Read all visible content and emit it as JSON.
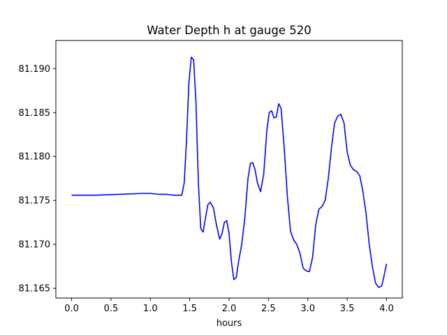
{
  "chart_data": {
    "type": "line",
    "title": "Water Depth h at gauge 520",
    "xlabel": "hours",
    "ylabel": "",
    "xlim": [
      -0.2,
      4.2
    ],
    "ylim": [
      81.1639,
      81.1932
    ],
    "xticks": [
      0.0,
      0.5,
      1.0,
      1.5,
      2.0,
      2.5,
      3.0,
      3.5,
      4.0
    ],
    "xtick_labels": [
      "0.0",
      "0.5",
      "1.0",
      "1.5",
      "2.0",
      "2.5",
      "3.0",
      "3.5",
      "4.0"
    ],
    "yticks": [
      81.165,
      81.17,
      81.175,
      81.18,
      81.185,
      81.19
    ],
    "ytick_labels": [
      "81.165",
      "81.170",
      "81.175",
      "81.180",
      "81.185",
      "81.190"
    ],
    "grid": false,
    "series": [
      {
        "color": "#0000ff",
        "x": [
          0.0,
          0.3,
          0.6,
          0.9,
          1.0,
          1.1,
          1.2,
          1.3,
          1.4,
          1.43,
          1.46,
          1.49,
          1.52,
          1.55,
          1.58,
          1.61,
          1.64,
          1.67,
          1.7,
          1.73,
          1.76,
          1.8,
          1.84,
          1.88,
          1.91,
          1.94,
          1.97,
          2.0,
          2.03,
          2.06,
          2.09,
          2.12,
          2.16,
          2.2,
          2.24,
          2.27,
          2.3,
          2.33,
          2.36,
          2.4,
          2.44,
          2.48,
          2.51,
          2.54,
          2.57,
          2.6,
          2.63,
          2.66,
          2.7,
          2.74,
          2.78,
          2.82,
          2.86,
          2.9,
          2.94,
          2.98,
          3.02,
          3.06,
          3.1,
          3.14,
          3.18,
          3.22,
          3.26,
          3.3,
          3.34,
          3.38,
          3.42,
          3.46,
          3.5,
          3.54,
          3.58,
          3.62,
          3.66,
          3.7,
          3.74,
          3.78,
          3.82,
          3.86,
          3.9,
          3.94,
          3.97,
          4.0
        ],
        "y": [
          81.1756,
          81.1756,
          81.1757,
          81.1758,
          81.1758,
          81.1757,
          81.1757,
          81.1756,
          81.1756,
          81.177,
          81.182,
          81.1885,
          81.1913,
          81.191,
          81.186,
          81.177,
          81.1718,
          81.1714,
          81.173,
          81.1745,
          81.1748,
          81.1742,
          81.1722,
          81.1706,
          81.1712,
          81.1725,
          81.1727,
          81.1712,
          81.168,
          81.166,
          81.1662,
          81.168,
          81.17,
          81.173,
          81.1775,
          81.1792,
          81.1793,
          81.1785,
          81.177,
          81.176,
          81.178,
          81.183,
          81.185,
          81.1852,
          81.1844,
          81.1845,
          81.186,
          81.1855,
          81.181,
          81.1755,
          81.1715,
          81.1705,
          81.17,
          81.169,
          81.1673,
          81.167,
          81.1669,
          81.1685,
          81.1722,
          81.174,
          81.1743,
          81.175,
          81.1775,
          81.181,
          81.1838,
          81.1846,
          81.1848,
          81.1838,
          81.1805,
          81.179,
          81.1785,
          81.1783,
          81.1778,
          81.176,
          81.1735,
          81.17,
          81.1675,
          81.1656,
          81.1651,
          81.1653,
          81.1665,
          81.1678
        ]
      }
    ]
  }
}
